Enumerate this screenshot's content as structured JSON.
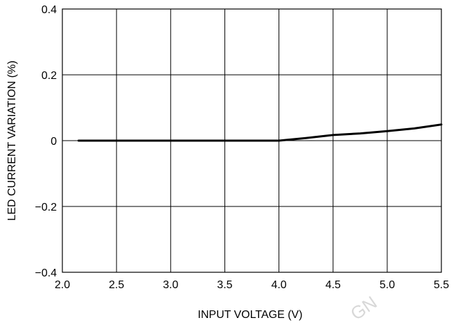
{
  "chart_data": {
    "type": "line",
    "title": "",
    "xlabel": "INPUT VOLTAGE (V)",
    "ylabel": "LED CURRENT VARIATION (%)",
    "xlim": [
      2.0,
      5.5
    ],
    "ylim": [
      -0.4,
      0.4
    ],
    "x_ticks": [
      2.0,
      2.5,
      3.0,
      3.5,
      4.0,
      4.5,
      5.0,
      5.5
    ],
    "x_tick_labels": [
      "2.0",
      "2.5",
      "3.0",
      "3.5",
      "4.0",
      "4.5",
      "5.0",
      "5.5"
    ],
    "y_ticks": [
      0.4,
      0.2,
      0,
      -0.2,
      -0.4
    ],
    "y_tick_labels": [
      "0.4",
      "0.2",
      "0",
      "−0.2",
      "−0.4"
    ],
    "grid": true,
    "legend": "none",
    "series": [
      {
        "color": "#000000",
        "x": [
          2.15,
          2.5,
          3.0,
          3.5,
          4.0,
          4.25,
          4.5,
          4.75,
          5.0,
          5.25,
          5.5
        ],
        "y": [
          0,
          0,
          0,
          0,
          0,
          0.008,
          0.017,
          0.022,
          0.029,
          0.037,
          0.049
        ]
      }
    ]
  },
  "watermark": "GN"
}
